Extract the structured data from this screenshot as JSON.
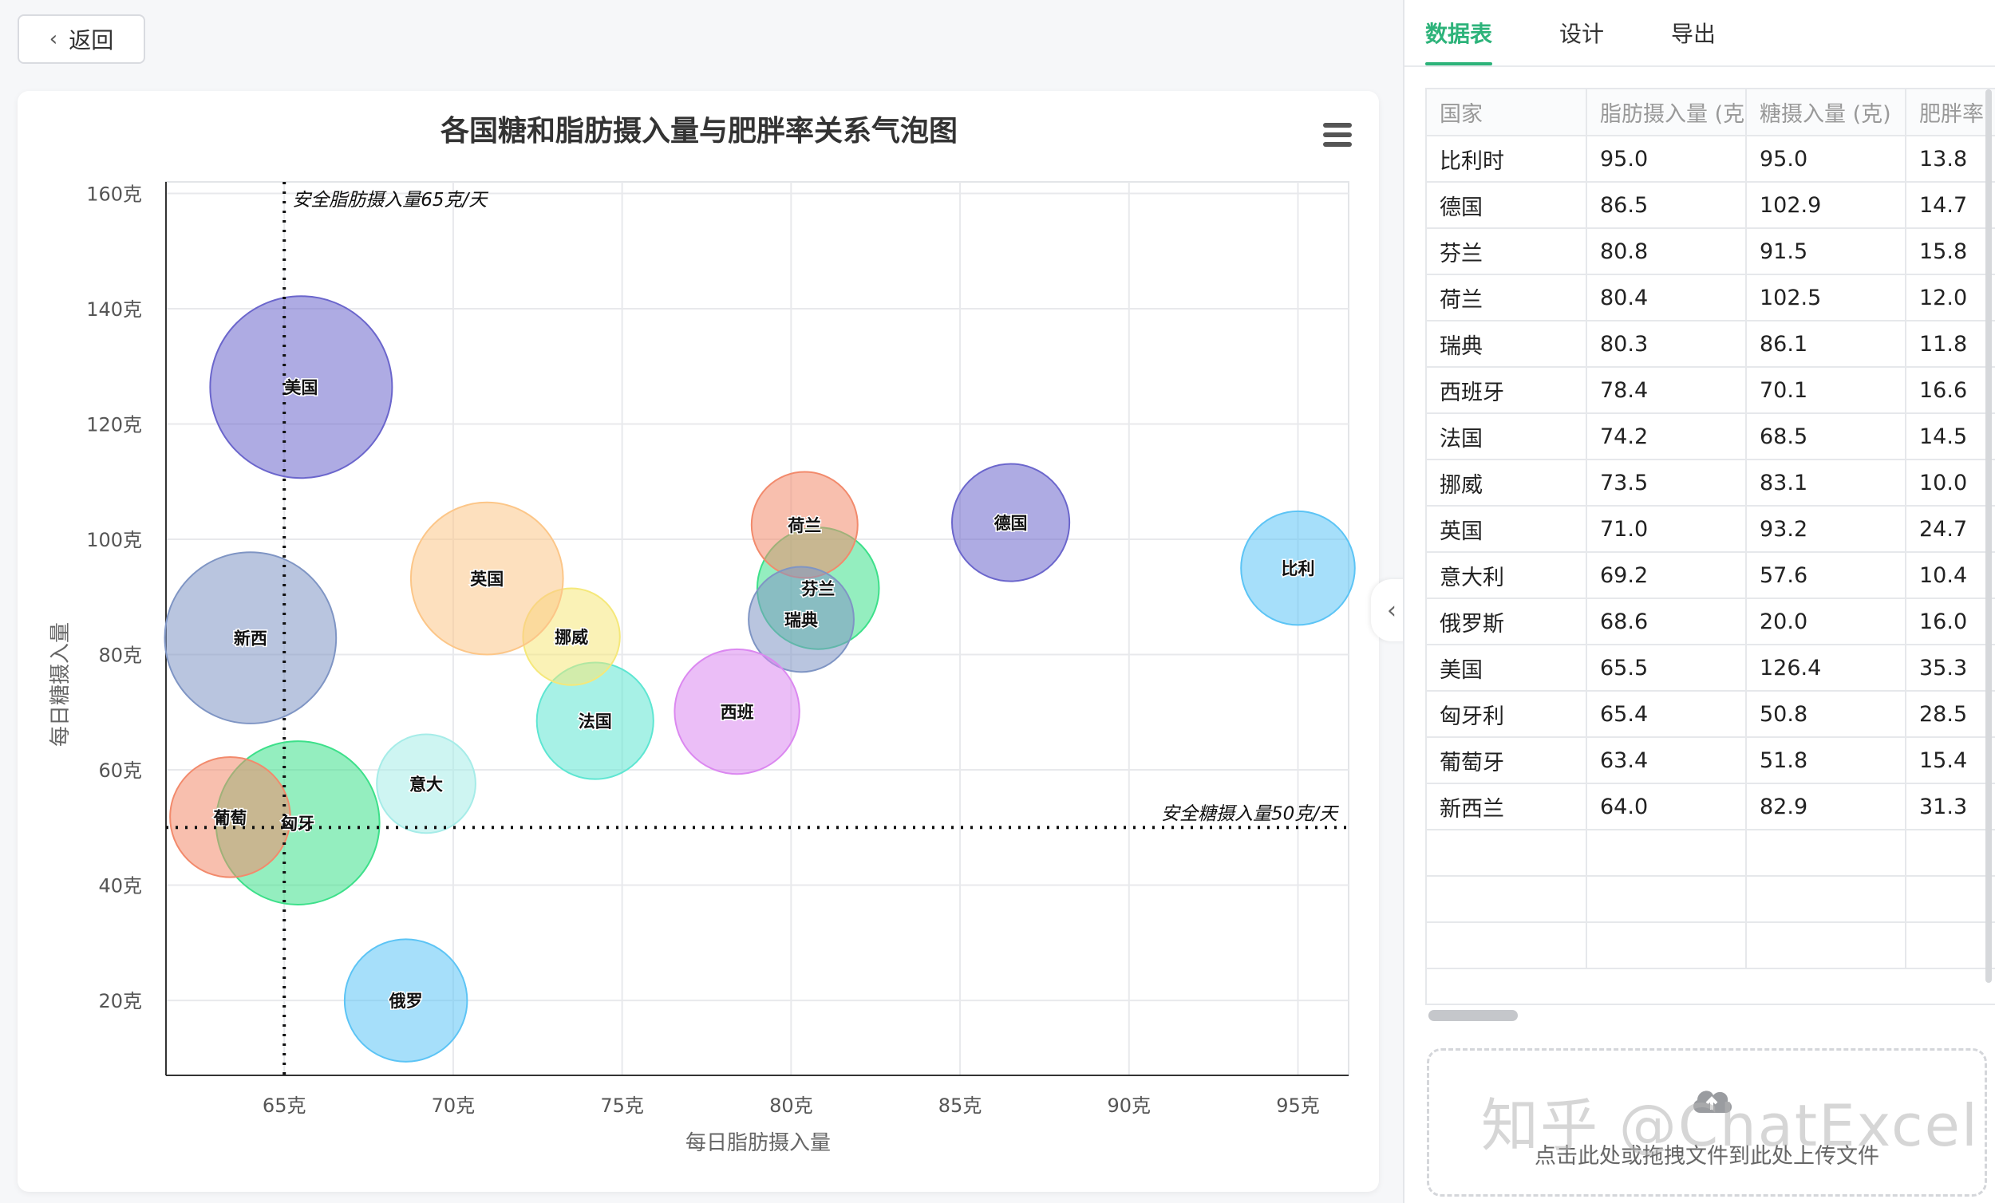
{
  "toolbar": {
    "back_label": "返回"
  },
  "tabs": [
    {
      "label": "数据表",
      "active": true
    },
    {
      "label": "设计",
      "active": false
    },
    {
      "label": "导出",
      "active": false
    }
  ],
  "table": {
    "headers": [
      "国家",
      "脂肪摄入量 (克",
      "糖摄入量 (克)",
      "肥胖率"
    ],
    "rows": [
      [
        "比利时",
        "95.0",
        "95.0",
        "13.8"
      ],
      [
        "德国",
        "86.5",
        "102.9",
        "14.7"
      ],
      [
        "芬兰",
        "80.8",
        "91.5",
        "15.8"
      ],
      [
        "荷兰",
        "80.4",
        "102.5",
        "12.0"
      ],
      [
        "瑞典",
        "80.3",
        "86.1",
        "11.8"
      ],
      [
        "西班牙",
        "78.4",
        "70.1",
        "16.6"
      ],
      [
        "法国",
        "74.2",
        "68.5",
        "14.5"
      ],
      [
        "挪威",
        "73.5",
        "83.1",
        "10.0"
      ],
      [
        "英国",
        "71.0",
        "93.2",
        "24.7"
      ],
      [
        "意大利",
        "69.2",
        "57.6",
        "10.4"
      ],
      [
        "俄罗斯",
        "68.6",
        "20.0",
        "16.0"
      ],
      [
        "美国",
        "65.5",
        "126.4",
        "35.3"
      ],
      [
        "匈牙利",
        "65.4",
        "50.8",
        "28.5"
      ],
      [
        "葡萄牙",
        "63.4",
        "51.8",
        "15.4"
      ],
      [
        "新西兰",
        "64.0",
        "82.9",
        "31.3"
      ]
    ],
    "empty_rows": 3
  },
  "upload": {
    "text": "点击此处或拖拽文件到此处上传文件",
    "icon": "cloud-upload-icon"
  },
  "watermark": "知乎 @ChatExcel",
  "chart_data": {
    "type": "scatter",
    "title": "各国糖和脂肪摄入量与肥胖率关系气泡图",
    "xlabel": "每日脂肪摄入量",
    "ylabel": "每日糖摄入量",
    "xlim": [
      61.5,
      96.5
    ],
    "ylim": [
      7,
      162
    ],
    "x_ticks": [
      65,
      70,
      75,
      80,
      85,
      90,
      95
    ],
    "y_ticks": [
      20,
      40,
      60,
      80,
      100,
      120,
      140,
      160
    ],
    "x_tick_labels": [
      "65克",
      "70克",
      "75克",
      "80克",
      "85克",
      "90克",
      "95克"
    ],
    "y_tick_labels": [
      "20克",
      "40克",
      "60克",
      "80克",
      "100克",
      "120克",
      "140克",
      "160克"
    ],
    "grid": true,
    "reference_lines": [
      {
        "axis": "x",
        "value": 65,
        "label": "安全脂肪摄入量65克/天"
      },
      {
        "axis": "y",
        "value": 50,
        "label": "安全糖摄入量50克/天"
      }
    ],
    "points": [
      {
        "label": "比利",
        "x": 95.0,
        "y": 95.0,
        "z": 13.8,
        "color": "#5cc4f5"
      },
      {
        "label": "德国",
        "x": 86.5,
        "y": 102.9,
        "z": 14.7,
        "color": "#6b66cc"
      },
      {
        "label": "芬兰",
        "x": 80.8,
        "y": 91.5,
        "z": 15.8,
        "color": "#3de08a"
      },
      {
        "label": "荷兰",
        "x": 80.4,
        "y": 102.5,
        "z": 12.0,
        "color": "#f28a6c"
      },
      {
        "label": "瑞典",
        "x": 80.3,
        "y": 86.1,
        "z": 11.8,
        "color": "#7f95c4"
      },
      {
        "label": "西班",
        "x": 78.4,
        "y": 70.1,
        "z": 16.6,
        "color": "#db88f0"
      },
      {
        "label": "法国",
        "x": 74.2,
        "y": 68.5,
        "z": 14.5,
        "color": "#5ee6d2"
      },
      {
        "label": "挪威",
        "x": 73.5,
        "y": 83.1,
        "z": 10.0,
        "color": "#f5e87a"
      },
      {
        "label": "英国",
        "x": 71.0,
        "y": 93.2,
        "z": 24.7,
        "color": "#fcc688"
      },
      {
        "label": "意大",
        "x": 69.2,
        "y": 57.6,
        "z": 10.4,
        "color": "#a6ece8"
      },
      {
        "label": "俄罗",
        "x": 68.6,
        "y": 20.0,
        "z": 16.0,
        "color": "#5cc4f5"
      },
      {
        "label": "美国",
        "x": 65.5,
        "y": 126.4,
        "z": 35.3,
        "color": "#6b66cc"
      },
      {
        "label": "匈牙",
        "x": 65.4,
        "y": 50.8,
        "z": 28.5,
        "color": "#3de08a"
      },
      {
        "label": "葡萄",
        "x": 63.4,
        "y": 51.8,
        "z": 15.4,
        "color": "#f28a6c"
      },
      {
        "label": "新西",
        "x": 64.0,
        "y": 82.9,
        "z": 31.3,
        "color": "#7f95c4"
      }
    ]
  }
}
